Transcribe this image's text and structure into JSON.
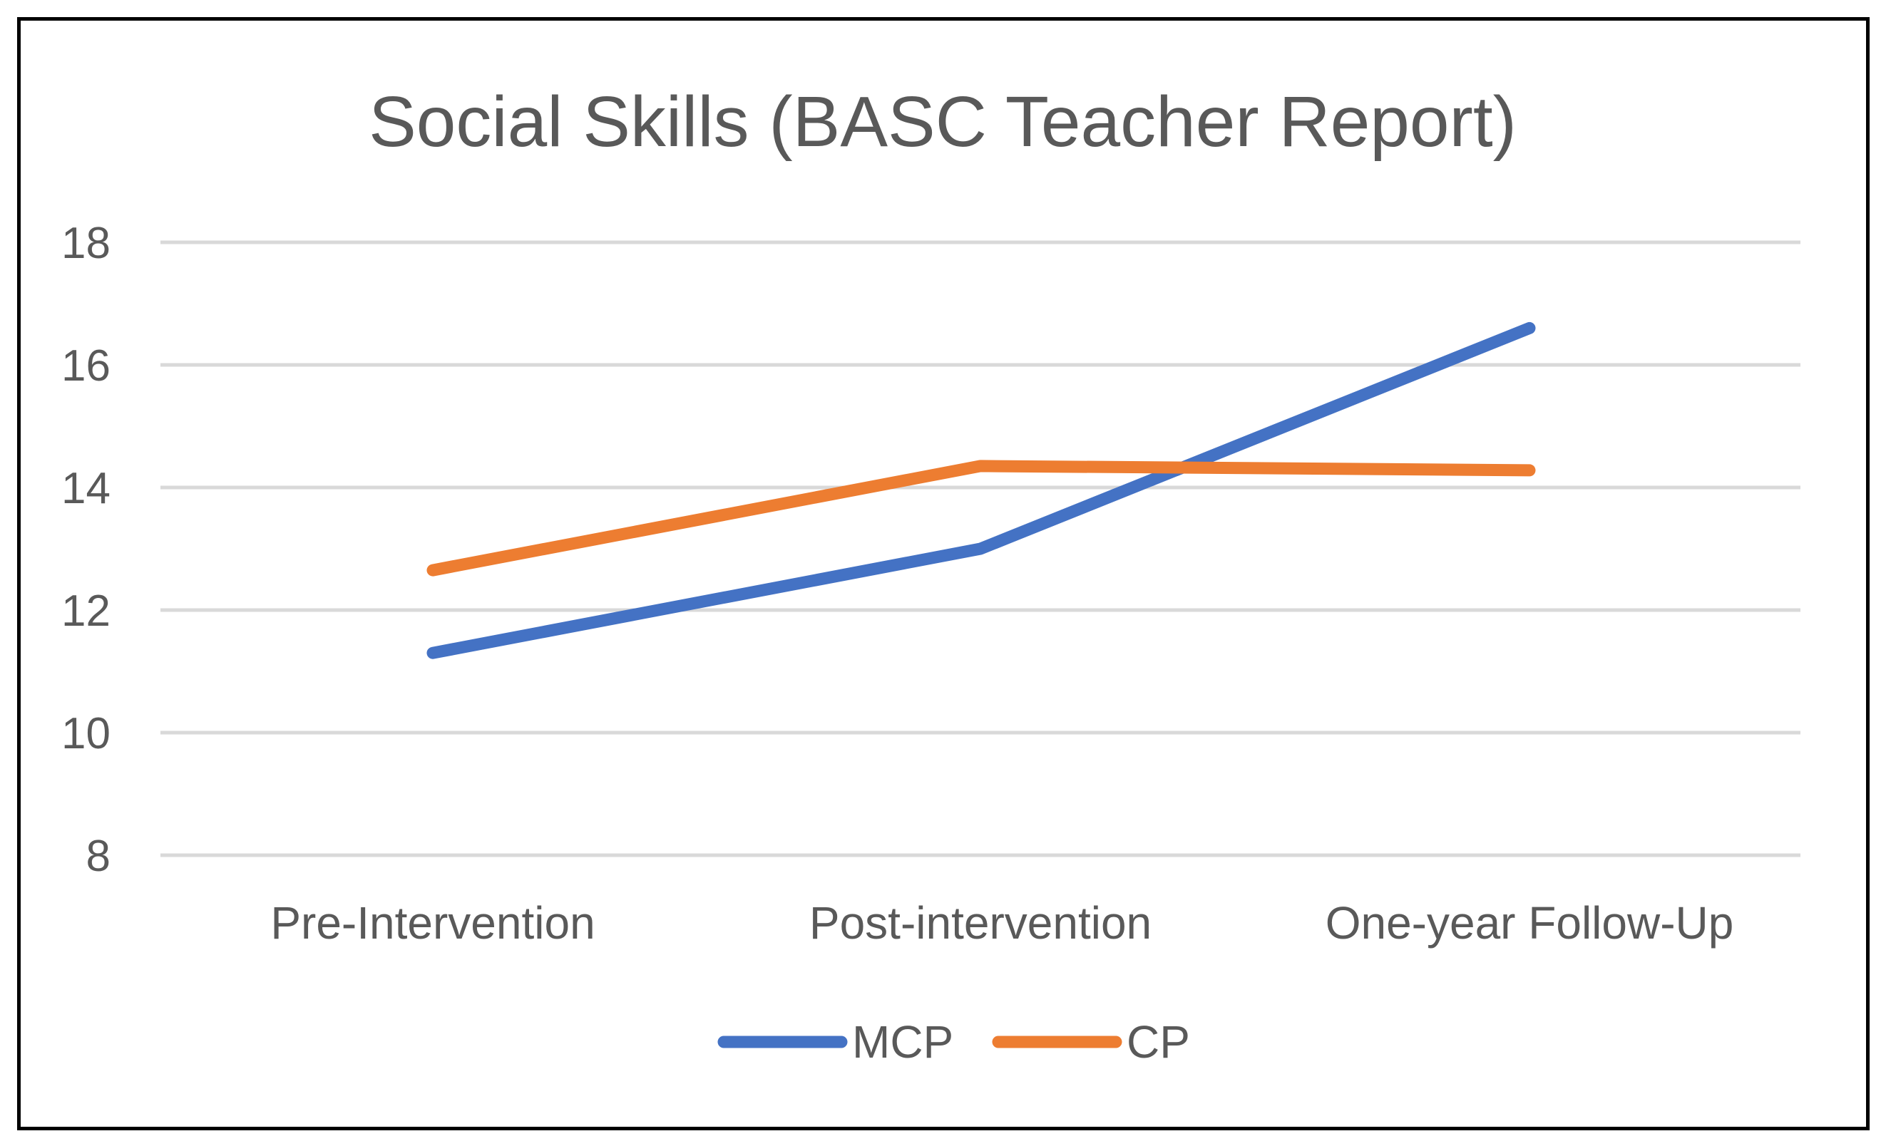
{
  "chart_data": {
    "type": "line",
    "title": "Social Skills (BASC Teacher Report)",
    "xlabel": "",
    "ylabel": "",
    "categories": [
      "Pre-Intervention",
      "Post-intervention",
      "One-year Follow-Up"
    ],
    "ylim": [
      8,
      18
    ],
    "yticks": [
      8,
      10,
      12,
      14,
      16,
      18
    ],
    "grid": true,
    "legend_position": "bottom",
    "series": [
      {
        "name": "MCP",
        "color": "#4472C4",
        "values": [
          11.3,
          13.0,
          16.6
        ]
      },
      {
        "name": "CP",
        "color": "#ED7D31",
        "values": [
          12.65,
          14.35,
          14.28
        ]
      }
    ]
  }
}
